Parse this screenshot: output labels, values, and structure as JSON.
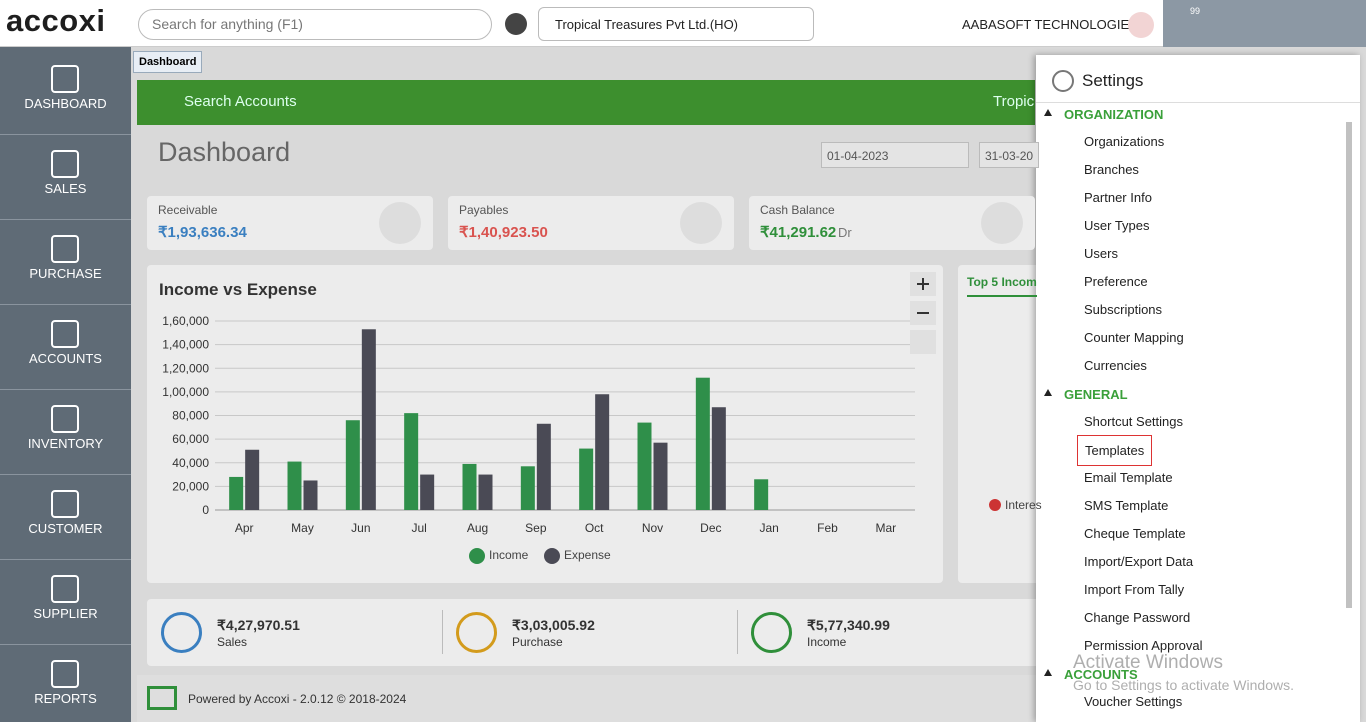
{
  "topbar": {
    "logo": "accoxi",
    "search_placeholder": "Search for anything (F1)",
    "company": "Tropical Treasures Pvt Ltd.(HO)",
    "org": "AABASOFT TECHNOLOGIES",
    "notification_count": "99"
  },
  "sidebar": [
    "DASHBOARD",
    "SALES",
    "PURCHASE",
    "ACCOUNTS",
    "INVENTORY",
    "CUSTOMER",
    "SUPPLIER",
    "REPORTS"
  ],
  "tab": "Dashboard",
  "banner": {
    "search": "Search Accounts",
    "company": "Tropic"
  },
  "page_title": "Dashboard",
  "date_from": "01-04-2023",
  "date_to": "31-03-20",
  "cards": [
    {
      "label": "Receivable",
      "amount": "₹1,93,636.34"
    },
    {
      "label": "Payables",
      "amount": "₹1,40,923.50"
    },
    {
      "label": "Cash Balance",
      "amount": "₹41,291.62",
      "suffix": "Dr"
    }
  ],
  "chart": {
    "type": "bar",
    "title": "Income vs Expense",
    "categories": [
      "Apr",
      "May",
      "Jun",
      "Jul",
      "Aug",
      "Sep",
      "Oct",
      "Nov",
      "Dec",
      "Jan",
      "Feb",
      "Mar"
    ],
    "series": [
      {
        "name": "Income",
        "color": "#2f8f4a",
        "values": [
          28000,
          41000,
          76000,
          82000,
          39000,
          37000,
          52000,
          74000,
          112000,
          26000,
          0,
          0
        ]
      },
      {
        "name": "Expense",
        "color": "#4a4a55",
        "values": [
          51000,
          25000,
          153000,
          30000,
          30000,
          73000,
          98000,
          57000,
          87000,
          0,
          0,
          0
        ]
      }
    ],
    "ylim": [
      0,
      160000
    ],
    "yticks": [
      0,
      {
        "value": 20000,
        "label": "20,000"
      },
      {
        "value": 40000,
        "label": "40,000"
      },
      {
        "value": 60000,
        "label": "60,000"
      },
      {
        "value": 80000,
        "label": "80,000"
      },
      {
        "value": 100000,
        "label": "1,00,000"
      },
      {
        "value": 120000,
        "label": "1,20,000"
      },
      {
        "value": 140000,
        "label": "1,40,000"
      },
      {
        "value": 160000,
        "label": "1,60,000"
      }
    ],
    "grid": true
  },
  "top5": {
    "title": "Top 5 Incom",
    "legend": "Interes"
  },
  "totals": [
    {
      "amount": "₹4,27,970.51",
      "label": "Sales"
    },
    {
      "amount": "₹3,03,005.92",
      "label": "Purchase"
    },
    {
      "amount": "₹5,77,340.99",
      "label": "Income"
    }
  ],
  "footer": "Powered by Accoxi - 2.0.12 © 2018-2024",
  "settings": {
    "title": "Settings",
    "groups": [
      {
        "name": "ORGANIZATION",
        "items": [
          "Organizations",
          "Branches",
          "Partner Info",
          "User Types",
          "Users",
          "Preference",
          "Subscriptions",
          "Counter Mapping",
          "Currencies"
        ]
      },
      {
        "name": "GENERAL",
        "items": [
          "Shortcut Settings",
          "Templates",
          "Email Template",
          "SMS Template",
          "Cheque Template",
          "Import/Export Data",
          "Import From Tally",
          "Change Password",
          "Permission Approval"
        ]
      },
      {
        "name": "ACCOUNTS",
        "items": [
          "Voucher Settings"
        ]
      }
    ]
  },
  "watermark": {
    "title": "Activate Windows",
    "text": "Go to Settings to activate Windows."
  }
}
